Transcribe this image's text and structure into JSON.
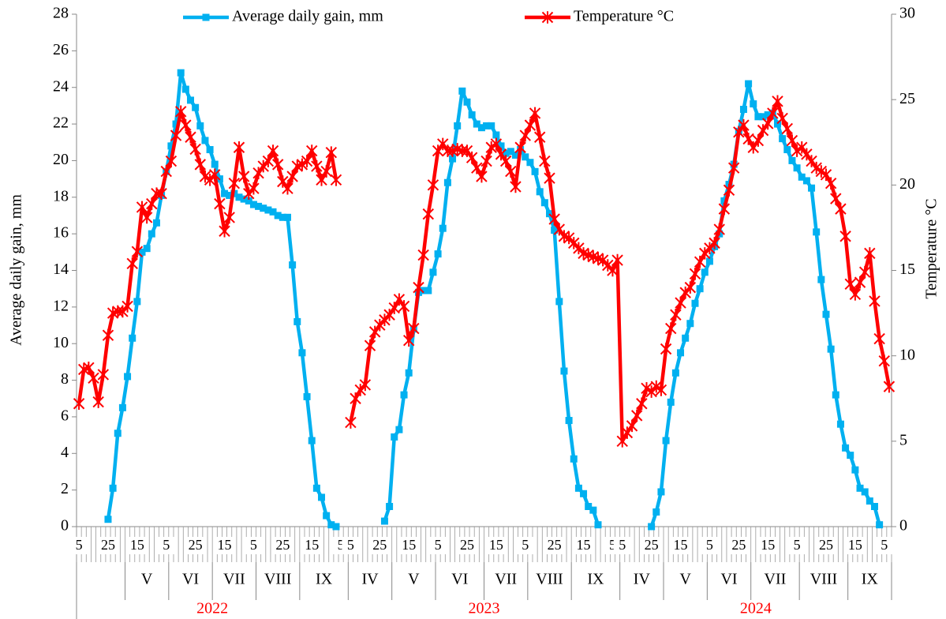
{
  "chart_data": {
    "type": "line",
    "categories": [
      "5",
      null,
      null,
      null,
      null,
      null,
      "25",
      null,
      null,
      null,
      null,
      null,
      "15",
      null,
      null,
      null,
      null,
      null,
      "5",
      null,
      null,
      null,
      null,
      null,
      "25",
      null,
      null,
      null,
      null,
      null,
      "15",
      null,
      null,
      null,
      null,
      null,
      "5",
      null,
      null,
      null,
      null,
      null,
      "25",
      null,
      null,
      null,
      null,
      null,
      "15",
      null,
      null,
      null,
      null,
      null,
      "5",
      null,
      "5",
      null,
      null,
      null,
      null,
      null,
      "25",
      null,
      null,
      null,
      null,
      null,
      "15",
      null,
      null,
      null,
      null,
      null,
      "5",
      null,
      null,
      null,
      null,
      null,
      "25",
      null,
      null,
      null,
      null,
      null,
      "15",
      null,
      null,
      null,
      null,
      null,
      "5",
      null,
      null,
      null,
      null,
      null,
      "25",
      null,
      null,
      null,
      null,
      null,
      "15",
      null,
      null,
      null,
      null,
      null,
      "5",
      null,
      "5",
      null,
      null,
      null,
      null,
      null,
      "25",
      null,
      null,
      null,
      null,
      null,
      "15",
      null,
      null,
      null,
      null,
      null,
      "5",
      null,
      null,
      null,
      null,
      null,
      "25",
      null,
      null,
      null,
      null,
      null,
      "15",
      null,
      null,
      null,
      null,
      null,
      "5",
      null,
      null,
      null,
      null,
      null,
      "25",
      null,
      null,
      null,
      null,
      null,
      "15",
      null,
      null,
      null,
      null,
      null,
      "5",
      null
    ],
    "months": [
      {
        "count": 10
      },
      {
        "label": "V",
        "count": 9
      },
      {
        "label": "VI",
        "count": 9
      },
      {
        "label": "VII",
        "count": 9
      },
      {
        "label": "VIII",
        "count": 9
      },
      {
        "label": "IX",
        "count": 10
      },
      {
        "label": "IV",
        "count": 9
      },
      {
        "label": "V",
        "count": 9
      },
      {
        "label": "VI",
        "count": 10
      },
      {
        "label": "VII",
        "count": 9
      },
      {
        "label": "VIII",
        "count": 9
      },
      {
        "label": "IX",
        "count": 10
      },
      {
        "label": "IV",
        "count": 9
      },
      {
        "label": "V",
        "count": 9
      },
      {
        "label": "VI",
        "count": 9
      },
      {
        "label": "VII",
        "count": 10
      },
      {
        "label": "VIII",
        "count": 10
      },
      {
        "label": "IX",
        "count": 9
      }
    ],
    "years": [
      {
        "label": "2022",
        "count": 56,
        "color": "#ff0000"
      },
      {
        "label": "2023",
        "count": 56,
        "color": "#ff0000"
      },
      {
        "label": "2024",
        "count": 56,
        "color": "#ff0000"
      }
    ],
    "ylabel": "Average daily gain, mm",
    "y2label": "Temperature °C",
    "ylim": [
      0,
      28
    ],
    "yticks": [
      0,
      2,
      4,
      6,
      8,
      10,
      12,
      14,
      16,
      18,
      20,
      22,
      24,
      26,
      28
    ],
    "y2lim": [
      0,
      30
    ],
    "y2ticks": [
      0,
      5,
      10,
      15,
      20,
      25,
      30
    ],
    "legend": "top",
    "series": [
      {
        "name": "Average daily gain, mm",
        "color": "#00b0f0",
        "marker": "square",
        "values": [
          null,
          null,
          null,
          null,
          null,
          null,
          0.4,
          2.1,
          5.1,
          6.5,
          8.2,
          10.3,
          12.3,
          15.0,
          15.2,
          16.0,
          16.6,
          18.1,
          19.4,
          20.8,
          22.0,
          24.8,
          23.9,
          23.3,
          22.9,
          21.9,
          21.1,
          20.6,
          19.8,
          19.0,
          18.2,
          18.1,
          18.2,
          18.0,
          17.9,
          17.8,
          17.6,
          17.5,
          17.4,
          17.3,
          17.2,
          17.0,
          16.9,
          16.9,
          14.3,
          11.2,
          9.5,
          7.1,
          4.7,
          2.1,
          1.6,
          0.6,
          0.1,
          0.0,
          null,
          null,
          null,
          null,
          null,
          null,
          null,
          null,
          null,
          0.3,
          1.1,
          4.9,
          5.3,
          7.2,
          8.4,
          10.8,
          12.8,
          12.9,
          12.9,
          13.9,
          14.9,
          16.3,
          18.8,
          20.1,
          21.9,
          23.8,
          23.2,
          22.5,
          22.0,
          21.8,
          21.9,
          21.9,
          21.4,
          20.8,
          20.4,
          20.5,
          20.3,
          20.6,
          20.2,
          19.9,
          19.4,
          18.3,
          17.7,
          17.1,
          16.2,
          12.3,
          8.5,
          5.8,
          3.7,
          2.1,
          1.8,
          1.1,
          0.9,
          0.1,
          null,
          null,
          null,
          null,
          null,
          null,
          null,
          null,
          null,
          null,
          0.0,
          0.8,
          1.9,
          4.7,
          6.8,
          8.4,
          9.5,
          10.3,
          11.1,
          12.2,
          13.0,
          13.9,
          14.5,
          15.3,
          16.0,
          17.8,
          18.7,
          19.8,
          21.6,
          22.8,
          24.2,
          23.1,
          22.4,
          22.4,
          22.5,
          22.6,
          22.0,
          21.2,
          20.6,
          20.0,
          19.6,
          19.1,
          18.9,
          18.5,
          16.1,
          13.5,
          11.6,
          9.7,
          7.2,
          5.6,
          4.3,
          3.9,
          3.1,
          2.1,
          1.9,
          1.4,
          1.1,
          0.1,
          null,
          null
        ]
      },
      {
        "name": "Temperature °C",
        "color": "#ff0000",
        "marker": "star",
        "axis": "y2",
        "values": [
          7.2,
          9.2,
          9.3,
          8.7,
          7.3,
          8.9,
          11.2,
          12.5,
          12.6,
          12.6,
          12.9,
          15.4,
          16.1,
          18.7,
          18.1,
          18.9,
          19.5,
          19.5,
          20.8,
          21.4,
          22.9,
          24.3,
          23.5,
          22.8,
          22.1,
          21.2,
          20.5,
          20.3,
          20.6,
          18.9,
          17.3,
          18.1,
          20.1,
          22.2,
          20.5,
          19.5,
          19.8,
          20.7,
          21.1,
          21.4,
          22.0,
          21.2,
          20.2,
          19.8,
          20.5,
          21.1,
          21.2,
          21.4,
          22.0,
          21.1,
          20.3,
          20.8,
          21.9,
          20.3,
          null,
          null,
          6.1,
          7.5,
          8.0,
          8.3,
          10.6,
          11.4,
          11.8,
          12.1,
          12.4,
          12.8,
          13.3,
          12.9,
          10.9,
          11.6,
          14.0,
          15.9,
          18.3,
          20.0,
          22.0,
          22.4,
          22.0,
          22.0,
          22.1,
          22.0,
          22.0,
          21.6,
          21.0,
          20.5,
          21.4,
          22.2,
          22.4,
          21.8,
          21.4,
          20.8,
          19.9,
          22.2,
          22.9,
          23.5,
          24.2,
          22.8,
          21.4,
          20.4,
          18.0,
          17.4,
          17.0,
          16.9,
          16.6,
          16.3,
          16.0,
          15.9,
          15.8,
          15.7,
          15.6,
          15.3,
          15.0,
          15.6,
          5.0,
          5.5,
          5.9,
          6.5,
          7.2,
          8.1,
          7.9,
          8.2,
          8.0,
          10.4,
          11.6,
          12.4,
          13.1,
          13.7,
          14.0,
          14.8,
          15.5,
          16.0,
          16.3,
          16.6,
          17.4,
          18.6,
          19.7,
          21.0,
          23.1,
          23.5,
          22.7,
          22.2,
          22.6,
          23.2,
          23.6,
          24.2,
          24.9,
          23.9,
          23.3,
          22.6,
          22.0,
          22.2,
          21.8,
          21.4,
          21.0,
          20.8,
          20.6,
          20.1,
          19.2,
          18.6,
          17.0,
          14.2,
          13.6,
          14.3,
          14.9,
          16.0,
          13.2,
          11.0,
          9.7,
          8.2
        ]
      }
    ]
  }
}
